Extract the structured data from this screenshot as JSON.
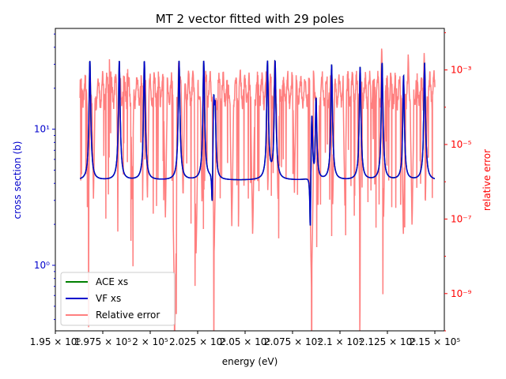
{
  "chart_data": {
    "type": "line",
    "title": "MT 2 vector fitted with 29 poles",
    "xlabel": "energy (eV)",
    "ylabel_left": "cross section (b)",
    "ylabel_right": "relative error",
    "xlim": [
      195000,
      215500
    ],
    "ylim_left": [
      0.33,
      55
    ],
    "ylim_right": [
      1e-10,
      0.013
    ],
    "yscale_left": "log",
    "yscale_right": "log",
    "x_ticks": [
      {
        "value": 195000,
        "label": "1.95 × 10⁵"
      },
      {
        "value": 197500,
        "label": "1.975 × 10⁵"
      },
      {
        "value": 200000,
        "label": "2 × 10⁵"
      },
      {
        "value": 202500,
        "label": "2.025 × 10⁵"
      },
      {
        "value": 205000,
        "label": "2.05 × 10⁵"
      },
      {
        "value": 207500,
        "label": "2.075 × 10⁵"
      },
      {
        "value": 210000,
        "label": "2.1 × 10⁵"
      },
      {
        "value": 212500,
        "label": "2.125 × 10⁵"
      },
      {
        "value": 215000,
        "label": "2.15 × 10⁵"
      }
    ],
    "y_ticks_left": [
      {
        "value": 1,
        "label": "10⁰"
      },
      {
        "value": 10,
        "label": "10¹"
      }
    ],
    "y_ticks_right": [
      {
        "value": 1e-09,
        "label": "10⁻⁹"
      },
      {
        "value": 1e-07,
        "label": "10⁻⁷"
      },
      {
        "value": 1e-05,
        "label": "10⁻⁵"
      },
      {
        "value": 0.001,
        "label": "10⁻³"
      }
    ],
    "legend_position": "lower-left",
    "baseline": 4.2,
    "resonances": [
      {
        "x": 196800,
        "peak": 32,
        "dip": 3.8
      },
      {
        "x": 198350,
        "peak": 32,
        "dip": 3.9
      },
      {
        "x": 199670,
        "peak": 32,
        "dip": 3.5
      },
      {
        "x": 201500,
        "peak": 32,
        "dip": 3.8
      },
      {
        "x": 202800,
        "peak": 32,
        "dip": 3.8
      },
      {
        "x": 203330,
        "peak": 19,
        "dip": 0.7
      },
      {
        "x": 203400,
        "peak": 14,
        "dip": 1.5
      },
      {
        "x": 206160,
        "peak": 32,
        "dip": 3.5
      },
      {
        "x": 206560,
        "peak": 32,
        "dip": 3.5
      },
      {
        "x": 208500,
        "peak": 13,
        "dip": 0.42
      },
      {
        "x": 208720,
        "peak": 17,
        "dip": 3.5
      },
      {
        "x": 209540,
        "peak": 30,
        "dip": 3.5
      },
      {
        "x": 211040,
        "peak": 29,
        "dip": 3.5
      },
      {
        "x": 212200,
        "peak": 31,
        "dip": 3.5
      },
      {
        "x": 213330,
        "peak": 25,
        "dip": 3.5
      },
      {
        "x": 214440,
        "peak": 31,
        "dip": 3.5
      }
    ],
    "error_dips": [
      {
        "x": 196750,
        "depth": 2e-07
      },
      {
        "x": 197010,
        "depth": 3e-07
      },
      {
        "x": 198300,
        "depth": 1e-06
      },
      {
        "x": 199050,
        "depth": 3e-07
      },
      {
        "x": 199850,
        "depth": 3e-07
      },
      {
        "x": 200800,
        "depth": 1e-07
      },
      {
        "x": 201300,
        "depth": 1e-10
      },
      {
        "x": 201730,
        "depth": 3e-07
      },
      {
        "x": 202730,
        "depth": 2e-07
      },
      {
        "x": 202420,
        "depth": 1e-08
      },
      {
        "x": 203370,
        "depth": 1e-08
      },
      {
        "x": 204300,
        "depth": 6e-08
      },
      {
        "x": 205400,
        "depth": 3e-08
      },
      {
        "x": 206200,
        "depth": 5e-07
      },
      {
        "x": 206730,
        "depth": 3e-07
      },
      {
        "x": 207600,
        "depth": 5e-07
      },
      {
        "x": 208500,
        "depth": 1e-09
      },
      {
        "x": 208840,
        "depth": 2e-07
      },
      {
        "x": 209620,
        "depth": 2e-07
      },
      {
        "x": 210260,
        "depth": 2e-07
      },
      {
        "x": 211050,
        "depth": 1e-07
      },
      {
        "x": 212300,
        "depth": 1e-07
      },
      {
        "x": 213340,
        "depth": 3e-08
      },
      {
        "x": 213800,
        "depth": 6e-08
      },
      {
        "x": 214500,
        "depth": 2e-07
      }
    ],
    "error_spikes": [
      {
        "x": 197850,
        "height": 0.002
      },
      {
        "x": 198800,
        "height": 0.002
      },
      {
        "x": 201500,
        "height": 0.002
      },
      {
        "x": 206560,
        "height": 0.002
      },
      {
        "x": 212200,
        "height": 0.005
      },
      {
        "x": 213600,
        "height": 0.003
      },
      {
        "x": 214440,
        "height": 0.003
      }
    ],
    "series": [
      {
        "name": "ACE xs",
        "color": "#008000",
        "axis": "left"
      },
      {
        "name": "VF xs",
        "color": "#0000cc",
        "axis": "left"
      },
      {
        "name": "Relative error",
        "color": "#ff7f7f",
        "axis": "right"
      }
    ]
  }
}
